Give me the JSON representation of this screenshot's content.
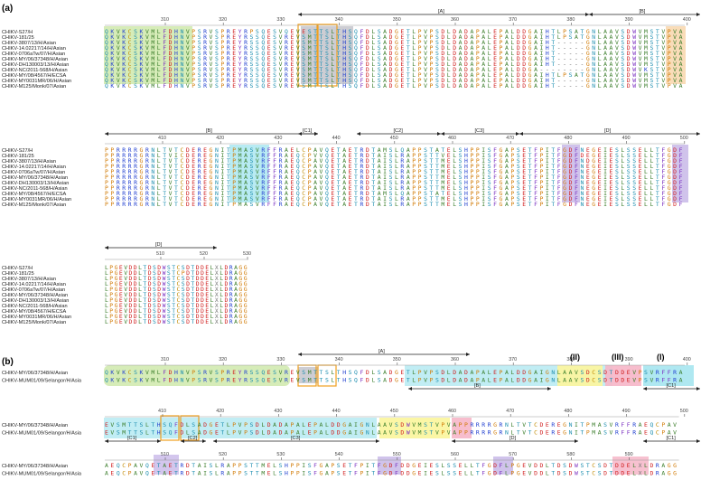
{
  "figure": {
    "panel_a_label": "(a)",
    "panel_b_label": "(b)"
  },
  "block1": {
    "ticks": [
      "310",
      "320",
      "330",
      "340",
      "350",
      "360",
      "370",
      "380",
      "390",
      "400"
    ],
    "regions": [
      "[A]",
      "[B]",
      "[B]",
      "[C1]",
      "[C2]",
      "[C3]",
      "[D]"
    ],
    "labels": [
      "CHIKV-S27/H",
      "CHIKV-181/25",
      "CHIKV-3807/13/H/Asian",
      "CHIKV-14.02217/14/H/Asian",
      "CHIKV-0706aTw/07/H/Asian",
      "CHIKV-MY/06/37348/H/Asian",
      "CHIKV-DH130003/13/H/Asian",
      "CHIKV-NC/2011-568/H/Asian",
      "CHIKV-MY/08/4567/H/ECSA",
      "CHIKV-MY0031MR/06/H/Asian",
      "CHIKV-M125/Monk/07/Asian"
    ],
    "rows": [
      "QKVKCSKVMLFDHNVPSRVSPREYRPSQESVQEVESTTSLTHSQFDLSADGETLPVPSDLDADAPALEPALDDGAIHTLPSATGNLAAVSDWVMSTVPVA",
      "QKVKCSKVMLFDHNVPSRVSPREYRSSQESVREVSMTTSLTHSQFDLSADGETLPVPSDLDADAPALEPALDDGAIHTLPSATGNLAAVSDWVMSTVPVA",
      "QKVKCSKVMLFDHNVPSRVSPREYRSSQESVREVSMTTSLTHSQFDLSADGETLPVPSDLDADAPALEPALDDGAIHT-----GNLAAVSDWVMSTVPVA",
      "QKVKCSKVMLFDHNVPSRVSPREYRSSQESVREVSMTTSLTHSQFDLSADGETLPVPSDLDADAPALEPALDDGAIHT-----GNLAAVSDWVMSTVPVA",
      "QKVKCSKVMLFDHNVPSRVSPREYRSSQESVREVSMTTSLTHSQFDLSADGETLPVPSDLDADAPALEPALDDGAIHT-----GNLAAVSDWVMSTVPVA",
      "QKVKCSKVMLFDHNVPSRVSPREYRSSQESVREVSMTTSLTHSQFDLSADGETLPVPSDLDADAPALEPALDDGAIHT-----GNLAAVSDWVMSTVPVA",
      "QKVKCSKVMLFDHNVPSRVSPREYRSSQESVREVSMTTSLTHSQFDLSADGETLPVPSDLDADAPALEPALDDGAIHT-----GNLAAVSDWVMSTVPVA",
      "QKVKCSKVMLFDHNVPSRVSPREYRSSQESVREVSMTTSLTHSQFDLSADGETLPVPSDLDADAPALEPALDDGA--------GNLAAVSDWVKSTVPVA",
      "QKVKCSKVMLFDHNVPSRVSPREYRSSQESVREVSMTTSLTHSQFDLSADGETLPVPSDLDADAPALEPALDDGAIHTLPSATGNLAAVSDWVMSTVPVA",
      "QKVKCSKVMLFDHNVPSRVSPREYRSSQESVREVSMTTSLTHSQFDLSADGETLPVPSDLDADAPALEPALDDGAIHT-----GNLAAVSDWVMSTVPVA",
      "QKVKCSKVMLFDHNVPSRVSPREYRSSQESVREVSMTTSLTHSQFDLSADGETLPVPSDLDADAPALEPALDDGAIHT-----GNLAAVSDWVMSTVPVA"
    ]
  },
  "block2": {
    "ticks": [
      "410",
      "420",
      "430",
      "440",
      "450",
      "460",
      "470",
      "480",
      "490",
      "500"
    ],
    "labels": [
      "CHIKV-S27/H",
      "CHIKV-181/25",
      "CHIKV-3807/13/H/Asian",
      "CHIKV-14.02217/14/H/Asian",
      "CHIKV-0706aTw/07/H/Asian",
      "CHIKV-MY/06/37348/H/Asian",
      "CHIKV-DH130003/13/H/Asian",
      "CHIKV-NC/2011-568/H/Asian",
      "CHIKV-MY/08/4567/H/ECSA",
      "CHIKV-MY0031MR/06/H/Asian",
      "CHIKV-M125/Monk/07/Asian"
    ],
    "rows": [
      "PPRRRRGRNLTVTCDEREGNITPMASVRFFRAELCPAVQETAETRDTAMSLQAPPSTATELSHPPISFGAPSETFPITFGDFNEGEIESLSSELLTFGDF",
      "PPRRRRGRNLTVICDEREGNITPMASVRFFRAEQCPVVQETAETRDTAISLRAPPSTTVELSHPPISFGAPSETFPITFGDFDEGEIESLSSELLTFGDF",
      "PPRRRRGRNLTVTCDEREGNITPMASVRFFRAEQCPAVQETAETRDTAISLRAPPSTTMELSHPPISFGAPSETFPITFGDFNDGEIESLSSELLTFGDF",
      "PPRRRRGRNLTVTCDEREGNITPMASVRFFRAEQCPAVQETAETRDTAISLRAPPSTTMELSHPPISFGAPSETFPITFGDFNEGEIESLSSELLTFGDF",
      "PPRRRRGRNLTVTCDEREGNITPMASVRFFRAEQCPAVQETAETRDTAISLRAPPSTTMELSHPPISFGAPSETFPITFGDFNEGEIESLSSELLTFGDF",
      "PPRRRRGRNLTVTCDEREGNITPMASVRFFRAEQCPAVQETAETRDTAISLRAPPSTTMELSHPPISFGAPSETFPITFGDFNEGEIESLSSELLTFGDF",
      "PPRRRRGRNLTVTCDEREGNITPMASVRFFRAEQCPAVQETAETRDTAISLRAPPSTTMELSHPPISFGAPSETFPITFGDFNEGEIESLSSELLTFGDF",
      "PPRRRRGRNLTVTCDEREGNITPMASVRFFRAEQCPAVQETAETRDTAISLRAPPSTTMELSHPPISFGAPSETFPITFGDFNEGEIESLSSELLTFGDF",
      "PPRRRRGRNLTVTCDEREGNITPMASVRFFRAEQCPAVQETAETRDTAMSLQAPPSTATELSHPPISFGAPSETFPITFGDFNEGEIESLSSELLTFGDF",
      "PPRRRRGRNLTVTCDEREGNITPMASVRFFRAEQCPAVQETAETRDTAISLRAPPSTTMELSHPPISFGAPSETFPITFGDFNEGEIESLSSELLTFGDF",
      "PPRRRRGRNLTVTCDEREGNITPMASVRFFRAEQCPAVQETAETRDTAISLRAPPSTTMELSHPPISFGAPSETFPITFGDFNEGEIESLSSELLTFGDF"
    ]
  },
  "block3": {
    "ticks": [
      "510",
      "520",
      "530"
    ],
    "labels": [
      "CHIKV-S27/H",
      "CHIKV-181/25",
      "CHIKV-3807/13/H/Asian",
      "CHIKV-14.02217/14/H/Asian",
      "CHIKV-0706aTw/07/H/Asian",
      "CHIKV-MY/06/37348/H/Asian",
      "CHIKV-DH130003/13/H/Asian",
      "CHIKV-NC/2011-568/H/Asian",
      "CHIKV-MY/08/4567/H/ECSA",
      "CHIKV-MY0031MR/06/H/Asian",
      "CHIKV-M125/Monk/07/Asian"
    ],
    "rows": [
      "LPGEVDDLTDSDWSTCSDTDDELXLDRAGG",
      "LPGEVDDLTDSDWSTCPDTDDELXLDRAGG",
      "LPGEVDDLTDSDWSTCSDTDDELXLDRAGG",
      "LPGEVDDLTDSDWSTCSDTDDELXLDRAGG",
      "LPGEVDDLTDSDWSTCSDTDDELXLDRAGG",
      "LPGEVDDLTDSDWSTCSDTDDELXLDRAGG",
      "LPGEVDDLTDSDWSTCSDTDDELXLDRAGG",
      "LPGEVDDLTDSDWSTCSDTDDELXLDRAGG",
      "LPGEVDDLTDSDWSTCSDTDDELXLDRAGG",
      "LPGEVDDLTDSDWSTCSDTDDELXLDRAGG",
      "LPGEVDDLTDSDWSTCSDTDDELXLDRAGG"
    ]
  },
  "panel_b": {
    "roman": [
      "(II)",
      "(III)",
      "(I)"
    ],
    "b1": {
      "ticks": [
        "310",
        "320",
        "330",
        "340",
        "350",
        "360",
        "370",
        "380",
        "390",
        "400"
      ],
      "regions": [
        "[A]",
        "[B]",
        "[C1]"
      ],
      "labels": [
        "CHIKV-MY/06/37348/H/Asian",
        "CHIKV-MUM01/09/Selangor/H/Asia"
      ],
      "rows": [
        "QKVKCSKVMLFDHNVPSRVSPREYRSSQESVREVSMTTSLTHSQFDLSADGETLPVPSDLDADAPALEPALDDGAIGNLAAVSDCSDTDDEVPSVRFFRA",
        "QKVKCSKVMLFDHNVPSRVSPREYRSSQESVREVSMTTSLTHSQFDLSADGETLPVPSDLDADAPALEPALDDGAIGNLAAVSDCSDTDDEVPSVRFFRA"
      ]
    },
    "b2": {
      "ticks": [
        "410",
        "420",
        "430",
        "440",
        "450",
        "460",
        "470",
        "480",
        "490",
        "500"
      ],
      "regions": [
        "[C1]",
        "[C2]",
        "[C3]",
        "[D]",
        "[C1]"
      ],
      "labels": [
        "CHIKV-MY/06/37348/H/Asian",
        "CHIKV-MUM01/09/Selangor/H/Asia"
      ],
      "rows": [
        "EVSMTTSLTHSQFDLSADGETLPVPSDLDADAPALEPALDDGAIGNLAAVSDWVMSTVPVAPPRRRRGRNLTVTCDEREGNITPMASVRFFRAEQCPAV",
        "EVSMTTSLTHSQFDLSADGETLPVPSDLDADAPALEPALDDGAIGNLAAVSDWVMSTVPVAPPRRRRGRNLTVTCDEREGNITPMASVRFFRAEQCPAV"
      ]
    },
    "b3": {
      "ticks": [
        "510",
        "520",
        "530",
        "540",
        "550",
        "560",
        "570",
        "580",
        "590"
      ],
      "regions": [
        "[C2]",
        "[C3]",
        "[D]"
      ],
      "labels": [
        "CHIKV-MY/06/37348/H/Asian",
        "CHIKV-MUM01/09/Selangor/H/Asia"
      ],
      "rows": [
        "AEQCPAVQETAETRDTAISLRAPPSTTMELSHPPISFGAPSETFPITFGDFDDGEIESLSSELLTFGDFLPGEVDDLTDSDWSTCSDTDDELXLDRAGG",
        "AEQCPAVQETAETRDTAISLRAPPSTTMELSHPPISFGAPSETFPITFGDFDDGEIESLSSELLTFGDFLPGEVDDLTDSDWSTCSDTDDELXLDRAGG"
      ]
    }
  },
  "colors": {
    "box_orange": "#f0a020",
    "hl_green": "#c8e6a0",
    "hl_purple": "#c8b8e8",
    "hl_cyan": "#a6e6f0",
    "hl_yellow": "#fbf6a0",
    "hl_pink": "#f6b6c8",
    "hl_peach": "#f8d8b0",
    "hl_gray": "#c0c0c8"
  }
}
